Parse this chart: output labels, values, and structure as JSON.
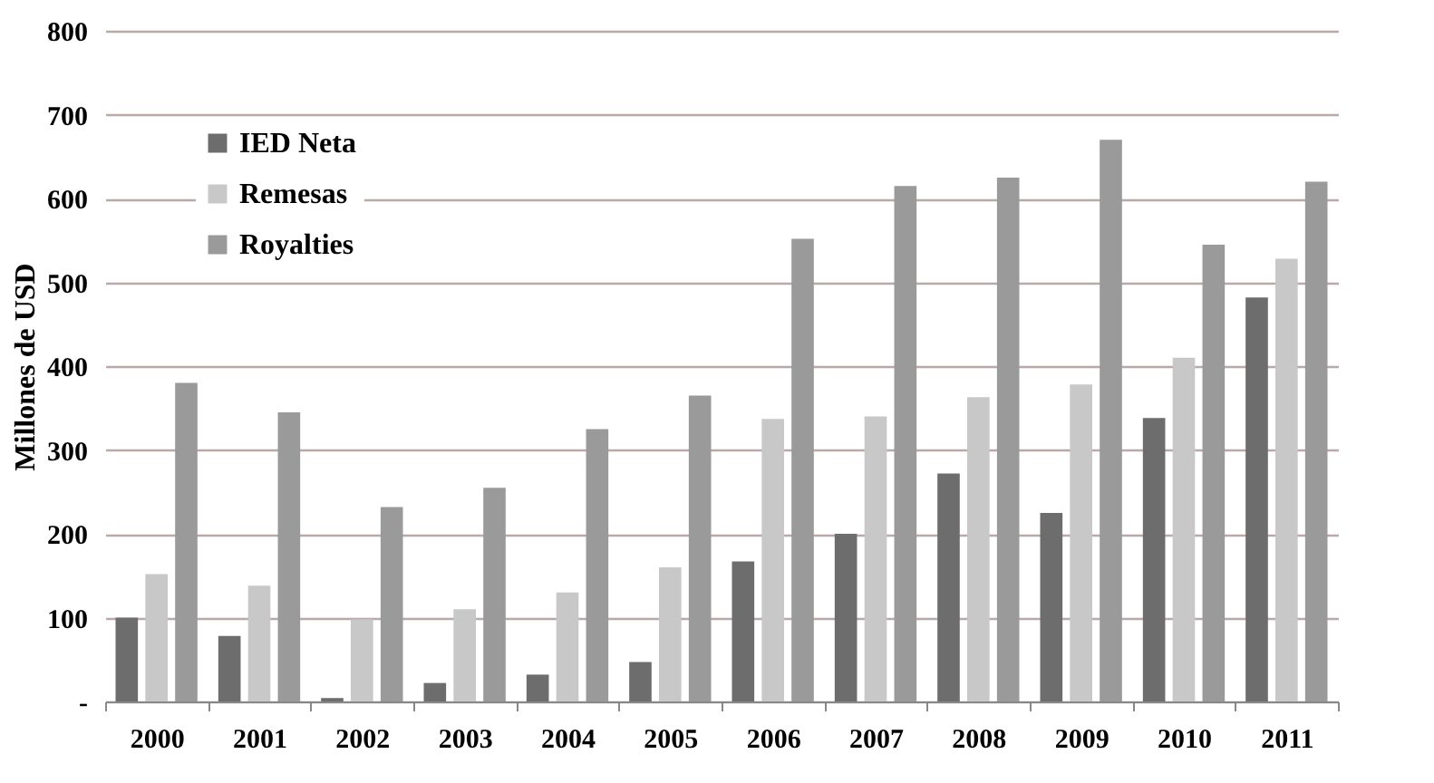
{
  "chart_data": {
    "type": "bar",
    "ylabel": "Millones de USD",
    "categories": [
      "2000",
      "2001",
      "2002",
      "2003",
      "2004",
      "2005",
      "2006",
      "2007",
      "2008",
      "2009",
      "2010",
      "2011"
    ],
    "series": [
      {
        "name": "IED Neta",
        "color": "#6d6d6d",
        "values": [
          100,
          78,
          4,
          22,
          32,
          47,
          167,
          200,
          272,
          225,
          338,
          482
        ]
      },
      {
        "name": "Remesas",
        "color": "#c8c8c8",
        "values": [
          152,
          138,
          98,
          110,
          130,
          160,
          337,
          340,
          363,
          378,
          410,
          528
        ]
      },
      {
        "name": "Royalties",
        "color": "#9a9a9a",
        "values": [
          380,
          345,
          232,
          255,
          325,
          365,
          552,
          615,
          625,
          670,
          545,
          620
        ]
      }
    ],
    "ylim": [
      0,
      800
    ],
    "yticks": [
      {
        "value": 0,
        "label": "-"
      },
      100,
      200,
      300,
      400,
      500,
      600,
      700,
      800
    ],
    "grid": "y",
    "legend": "top left"
  }
}
